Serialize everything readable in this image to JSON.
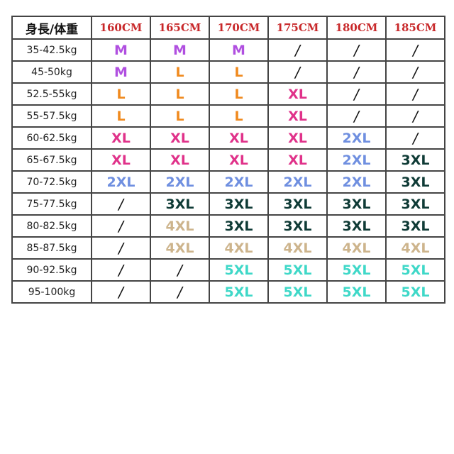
{
  "header": {
    "corner": "身長/体重",
    "heights": [
      "160CM",
      "165CM",
      "170CM",
      "175CM",
      "180CM",
      "185CM"
    ]
  },
  "rows": [
    {
      "weight": "35-42.5kg",
      "sizes": [
        "M",
        "M",
        "M",
        "/",
        "/",
        "/"
      ]
    },
    {
      "weight": "45-50kg",
      "sizes": [
        "M",
        "L",
        "L",
        "/",
        "/",
        "/"
      ]
    },
    {
      "weight": "52.5-55kg",
      "sizes": [
        "L",
        "L",
        "L",
        "XL",
        "/",
        "/"
      ]
    },
    {
      "weight": "55-57.5kg",
      "sizes": [
        "L",
        "L",
        "L",
        "XL",
        "/",
        "/"
      ]
    },
    {
      "weight": "60-62.5kg",
      "sizes": [
        "XL",
        "XL",
        "XL",
        "XL",
        "2XL",
        "/"
      ]
    },
    {
      "weight": "65-67.5kg",
      "sizes": [
        "XL",
        "XL",
        "XL",
        "XL",
        "2XL",
        "3XL"
      ]
    },
    {
      "weight": "70-72.5kg",
      "sizes": [
        "2XL",
        "2XL",
        "2XL",
        "2XL",
        "2XL",
        "3XL"
      ]
    },
    {
      "weight": "75-77.5kg",
      "sizes": [
        "/",
        "3XL",
        "3XL",
        "3XL",
        "3XL",
        "3XL"
      ]
    },
    {
      "weight": "80-82.5kg",
      "sizes": [
        "/",
        "4XL",
        "3XL",
        "3XL",
        "3XL",
        "3XL"
      ]
    },
    {
      "weight": "85-87.5kg",
      "sizes": [
        "/",
        "4XL",
        "4XL",
        "4XL",
        "4XL",
        "4XL"
      ]
    },
    {
      "weight": "90-92.5kg",
      "sizes": [
        "/",
        "/",
        "5XL",
        "5XL",
        "5XL",
        "5XL"
      ]
    },
    {
      "weight": "95-100kg",
      "sizes": [
        "/",
        "/",
        "5XL",
        "5XL",
        "5XL",
        "5XL"
      ]
    }
  ],
  "size_colors": {
    "M": "#b04fe0",
    "L": "#f08a1e",
    "XL": "#e0328a",
    "2XL": "#6f8fe0",
    "3XL": "#0f3b36",
    "4XL": "#cdb48c",
    "5XL": "#3fd8c8",
    "/": "#111111"
  },
  "header_color": "#c8282a"
}
